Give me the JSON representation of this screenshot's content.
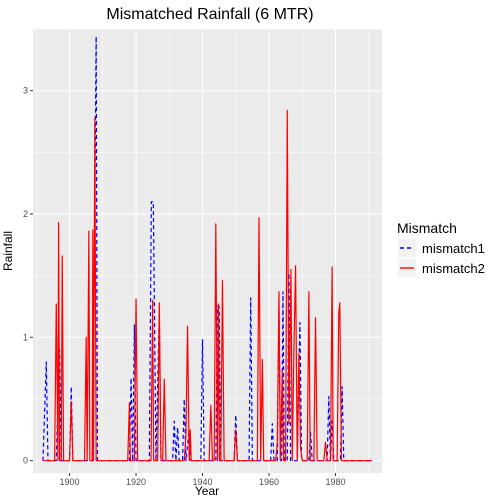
{
  "chart_data": {
    "type": "line",
    "title": "Mismatched Rainfall (6 MTR)",
    "xlabel": "Year",
    "ylabel": "Rainfall",
    "xlim": [
      1889,
      1994
    ],
    "ylim": [
      -0.1,
      3.5
    ],
    "x_ticks": [
      1900,
      1920,
      1940,
      1960,
      1980
    ],
    "y_ticks": [
      0,
      1,
      2,
      3
    ],
    "grid": true,
    "legend": {
      "title": "Mismatch",
      "position": "right"
    },
    "series": [
      {
        "name": "mismatch1",
        "color": "#0000ff",
        "dash": "dashed",
        "points": [
          [
            1892.0,
            0
          ],
          [
            1893.0,
            0.8
          ],
          [
            1893.5,
            0
          ],
          [
            1896.0,
            0
          ],
          [
            1897.0,
            0.9
          ],
          [
            1897.5,
            0
          ],
          [
            1900.0,
            0
          ],
          [
            1900.5,
            0.6
          ],
          [
            1901.0,
            0
          ],
          [
            1907.0,
            0
          ],
          [
            1908.0,
            3.44
          ],
          [
            1908.4,
            0
          ],
          [
            1918.0,
            0
          ],
          [
            1918.5,
            0.67
          ],
          [
            1919.0,
            0
          ],
          [
            1919.5,
            1.1
          ],
          [
            1920.0,
            0
          ],
          [
            1924.0,
            0
          ],
          [
            1924.6,
            2.1
          ],
          [
            1925.2,
            2.1
          ],
          [
            1926.0,
            0
          ],
          [
            1927.0,
            1.2
          ],
          [
            1927.5,
            0
          ],
          [
            1931.0,
            0
          ],
          [
            1931.5,
            0.32
          ],
          [
            1932.0,
            0
          ],
          [
            1932.5,
            0.27
          ],
          [
            1933.0,
            0
          ],
          [
            1934.0,
            0
          ],
          [
            1934.5,
            0.5
          ],
          [
            1935.0,
            0
          ],
          [
            1936.0,
            0.25
          ],
          [
            1936.5,
            0
          ],
          [
            1939.5,
            0
          ],
          [
            1940.0,
            0.98
          ],
          [
            1940.5,
            0
          ],
          [
            1944.0,
            0
          ],
          [
            1944.5,
            1.25
          ],
          [
            1945.0,
            1.25
          ],
          [
            1945.5,
            0
          ],
          [
            1949.5,
            0
          ],
          [
            1950.0,
            0.37
          ],
          [
            1950.5,
            0
          ],
          [
            1954.0,
            0
          ],
          [
            1954.5,
            1.32
          ],
          [
            1955.0,
            0
          ],
          [
            1960.5,
            0
          ],
          [
            1961.0,
            0.3
          ],
          [
            1961.5,
            0
          ],
          [
            1962.5,
            0
          ],
          [
            1963.0,
            1.25
          ],
          [
            1963.5,
            0
          ],
          [
            1963.8,
            0
          ],
          [
            1964.2,
            1.37
          ],
          [
            1964.6,
            0
          ],
          [
            1965.5,
            0
          ],
          [
            1966.0,
            1.52
          ],
          [
            1966.5,
            0
          ],
          [
            1968.5,
            0
          ],
          [
            1969.0,
            0.7
          ],
          [
            1969.3,
            1.12
          ],
          [
            1969.8,
            0
          ],
          [
            1972.0,
            0
          ],
          [
            1972.5,
            0.23
          ],
          [
            1973.0,
            0
          ],
          [
            1977.5,
            0
          ],
          [
            1978.0,
            0.52
          ],
          [
            1978.5,
            0
          ],
          [
            1979.0,
            0.32
          ],
          [
            1979.5,
            0
          ],
          [
            1981.5,
            0
          ],
          [
            1982.0,
            0.6
          ],
          [
            1982.5,
            0
          ],
          [
            1991.0,
            0
          ]
        ]
      },
      {
        "name": "mismatch2",
        "color": "#ff0000",
        "dash": "solid",
        "points": [
          [
            1892.0,
            0
          ],
          [
            1895.5,
            0
          ],
          [
            1896.0,
            1.27
          ],
          [
            1896.5,
            0
          ],
          [
            1896.7,
            1.93
          ],
          [
            1897.0,
            0
          ],
          [
            1897.5,
            0
          ],
          [
            1897.8,
            1.66
          ],
          [
            1898.2,
            0
          ],
          [
            1900.0,
            0
          ],
          [
            1900.5,
            0.48
          ],
          [
            1901.0,
            0
          ],
          [
            1904.5,
            0
          ],
          [
            1905.0,
            1.0
          ],
          [
            1905.3,
            0
          ],
          [
            1905.8,
            1.86
          ],
          [
            1906.1,
            0
          ],
          [
            1906.8,
            0
          ],
          [
            1907.0,
            1.87
          ],
          [
            1907.2,
            0
          ],
          [
            1907.6,
            2.78
          ],
          [
            1908.0,
            0
          ],
          [
            1917.5,
            0
          ],
          [
            1918.0,
            0.47
          ],
          [
            1918.3,
            0
          ],
          [
            1919.5,
            0
          ],
          [
            1920.0,
            1.31
          ],
          [
            1920.5,
            0
          ],
          [
            1924.5,
            0
          ],
          [
            1925.0,
            1.3
          ],
          [
            1925.3,
            0
          ],
          [
            1926.5,
            0
          ],
          [
            1927.0,
            1.28
          ],
          [
            1927.5,
            0
          ],
          [
            1928.0,
            0
          ],
          [
            1928.5,
            0.66
          ],
          [
            1929.0,
            0
          ],
          [
            1934.5,
            0
          ],
          [
            1935.0,
            0.2
          ],
          [
            1935.5,
            1.09
          ],
          [
            1936.0,
            0
          ],
          [
            1936.3,
            0.25
          ],
          [
            1936.6,
            0
          ],
          [
            1942.0,
            0
          ],
          [
            1942.5,
            0.45
          ],
          [
            1943.0,
            0
          ],
          [
            1943.5,
            0
          ],
          [
            1944.0,
            1.92
          ],
          [
            1944.5,
            0
          ],
          [
            1944.8,
            1.27
          ],
          [
            1945.1,
            0
          ],
          [
            1945.5,
            0
          ],
          [
            1946.0,
            1.46
          ],
          [
            1946.5,
            0
          ],
          [
            1949.5,
            0
          ],
          [
            1950.0,
            0.25
          ],
          [
            1950.5,
            0
          ],
          [
            1956.5,
            0
          ],
          [
            1957.0,
            1.97
          ],
          [
            1957.5,
            0
          ],
          [
            1958.0,
            0.82
          ],
          [
            1958.4,
            0
          ],
          [
            1962.0,
            0
          ],
          [
            1962.5,
            0.15
          ],
          [
            1963.0,
            1.37
          ],
          [
            1963.4,
            0
          ],
          [
            1964.0,
            0.73
          ],
          [
            1964.4,
            0
          ],
          [
            1965.0,
            0
          ],
          [
            1965.5,
            2.84
          ],
          [
            1966.0,
            0.3
          ],
          [
            1966.6,
            1.55
          ],
          [
            1967.0,
            0
          ],
          [
            1967.5,
            0.9
          ],
          [
            1968.0,
            1.58
          ],
          [
            1968.5,
            0
          ],
          [
            1969.0,
            0.87
          ],
          [
            1969.5,
            0.1
          ],
          [
            1970.0,
            0
          ],
          [
            1971.5,
            0
          ],
          [
            1972.0,
            1.37
          ],
          [
            1972.4,
            0
          ],
          [
            1973.5,
            0
          ],
          [
            1974.0,
            1.16
          ],
          [
            1974.5,
            0
          ],
          [
            1976.5,
            0
          ],
          [
            1977.0,
            0.15
          ],
          [
            1977.5,
            0
          ],
          [
            1978.5,
            0
          ],
          [
            1979.0,
            1.57
          ],
          [
            1979.3,
            0
          ],
          [
            1980.5,
            0
          ],
          [
            1981.0,
            1.2
          ],
          [
            1981.3,
            1.28
          ],
          [
            1981.8,
            0
          ],
          [
            1991.0,
            0
          ]
        ]
      }
    ]
  }
}
